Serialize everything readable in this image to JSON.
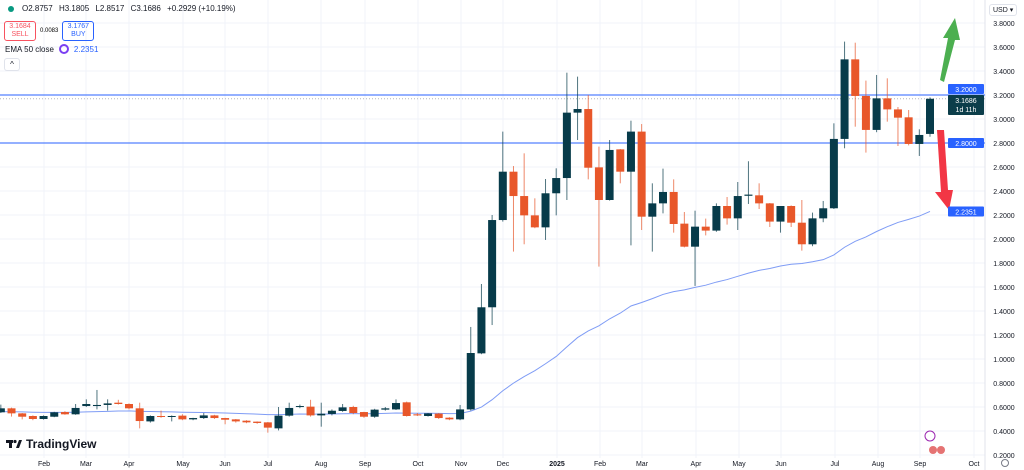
{
  "header": {
    "ohlc": {
      "open": "O2.8757",
      "high": "H3.1805",
      "low": "L2.8517",
      "close": "C3.1686",
      "change": "+0.2929 (+10.19%)"
    },
    "sell": {
      "price": "3.1684",
      "label": "SELL"
    },
    "spread": "0.0083",
    "buy": {
      "price": "3.1767",
      "label": "BUY"
    },
    "indicator": {
      "label": "EMA 50 close",
      "value": "2.2351"
    },
    "collapse_glyph": "^",
    "currency": "USD ▾"
  },
  "logo": {
    "text": "TradingView"
  },
  "colors": {
    "up": "#073b4a",
    "down": "#e8572a",
    "ema": "#7f9cf5",
    "level": "#2962ff",
    "arrow_up": "#4caf50",
    "arrow_down": "#f23645"
  },
  "chart_data": {
    "type": "candlestick",
    "interval": "1W",
    "ylim": [
      0.2,
      3.8
    ],
    "yticks": [
      "3.8000",
      "3.6000",
      "3.4000",
      "3.2000",
      "3.0000",
      "2.8000",
      "2.6000",
      "2.4000",
      "2.2000",
      "2.0000",
      "1.8000",
      "1.6000",
      "1.4000",
      "1.2000",
      "1.0000",
      "0.8000",
      "0.6000",
      "0.4000",
      "0.2000"
    ],
    "xticks": [
      "Feb",
      "Mar",
      "Apr",
      "May",
      "Jun",
      "Jul",
      "Aug",
      "Sep",
      "Oct",
      "Nov",
      "Dec",
      "2025",
      "Feb",
      "Mar",
      "Apr",
      "May",
      "Jun",
      "Jul",
      "Aug",
      "Sep",
      "Oct"
    ],
    "grid": true,
    "ohlc": [
      [
        0.556,
        0.62,
        0.55,
        0.589
      ],
      [
        0.589,
        0.595,
        0.52,
        0.547
      ],
      [
        0.547,
        0.55,
        0.497,
        0.519
      ],
      [
        0.525,
        0.53,
        0.49,
        0.5
      ],
      [
        0.5,
        0.53,
        0.495,
        0.525
      ],
      [
        0.519,
        0.56,
        0.515,
        0.556
      ],
      [
        0.558,
        0.565,
        0.535,
        0.539
      ],
      [
        0.539,
        0.625,
        0.535,
        0.592
      ],
      [
        0.608,
        0.664,
        0.6,
        0.625
      ],
      [
        0.608,
        0.742,
        0.58,
        0.617
      ],
      [
        0.617,
        0.664,
        0.57,
        0.63
      ],
      [
        0.636,
        0.66,
        0.62,
        0.625
      ],
      [
        0.625,
        0.63,
        0.58,
        0.589
      ],
      [
        0.589,
        0.636,
        0.422,
        0.483
      ],
      [
        0.48,
        0.53,
        0.47,
        0.525
      ],
      [
        0.525,
        0.57,
        0.51,
        0.517
      ],
      [
        0.517,
        0.53,
        0.48,
        0.525
      ],
      [
        0.528,
        0.54,
        0.49,
        0.497
      ],
      [
        0.497,
        0.51,
        0.49,
        0.508
      ],
      [
        0.508,
        0.55,
        0.5,
        0.53
      ],
      [
        0.53,
        0.535,
        0.5,
        0.508
      ],
      [
        0.508,
        0.51,
        0.456,
        0.494
      ],
      [
        0.497,
        0.5,
        0.47,
        0.48
      ],
      [
        0.486,
        0.49,
        0.465,
        0.472
      ],
      [
        0.478,
        0.48,
        0.46,
        0.467
      ],
      [
        0.472,
        0.475,
        0.386,
        0.428
      ],
      [
        0.422,
        0.6,
        0.405,
        0.528
      ],
      [
        0.528,
        0.636,
        0.52,
        0.592
      ],
      [
        0.603,
        0.62,
        0.59,
        0.608
      ],
      [
        0.603,
        0.66,
        0.52,
        0.53
      ],
      [
        0.53,
        0.636,
        0.436,
        0.544
      ],
      [
        0.542,
        0.58,
        0.53,
        0.569
      ],
      [
        0.567,
        0.625,
        0.56,
        0.597
      ],
      [
        0.6,
        0.61,
        0.54,
        0.55
      ],
      [
        0.558,
        0.56,
        0.51,
        0.519
      ],
      [
        0.519,
        0.585,
        0.51,
        0.578
      ],
      [
        0.578,
        0.6,
        0.57,
        0.589
      ],
      [
        0.58,
        0.664,
        0.575,
        0.633
      ],
      [
        0.639,
        0.645,
        0.52,
        0.525
      ],
      [
        0.539,
        0.55,
        0.525,
        0.53
      ],
      [
        0.525,
        0.55,
        0.52,
        0.547
      ],
      [
        0.545,
        0.55,
        0.5,
        0.508
      ],
      [
        0.511,
        0.515,
        0.49,
        0.497
      ],
      [
        0.497,
        0.617,
        0.49,
        0.58
      ],
      [
        0.58,
        1.267,
        0.57,
        1.05
      ],
      [
        1.047,
        1.625,
        1.04,
        1.431
      ],
      [
        1.431,
        2.2,
        1.283,
        2.158
      ],
      [
        2.158,
        2.895,
        2.145,
        2.561
      ],
      [
        2.561,
        2.608,
        1.895,
        2.358
      ],
      [
        2.358,
        2.714,
        1.956,
        2.197
      ],
      [
        2.197,
        2.339,
        2.09,
        2.097
      ],
      [
        2.097,
        2.5,
        1.992,
        2.381
      ],
      [
        2.381,
        2.589,
        2.197,
        2.508
      ],
      [
        2.508,
        3.386,
        2.325,
        3.053
      ],
      [
        3.053,
        3.353,
        2.825,
        3.083
      ],
      [
        3.083,
        3.2,
        2.497,
        2.594
      ],
      [
        2.597,
        2.77,
        1.77,
        2.325
      ],
      [
        2.325,
        2.825,
        2.32,
        2.742
      ],
      [
        2.747,
        2.75,
        2.464,
        2.561
      ],
      [
        2.561,
        2.986,
        1.947,
        2.895
      ],
      [
        2.895,
        2.958,
        2.075,
        2.186
      ],
      [
        2.186,
        2.464,
        1.895,
        2.297
      ],
      [
        2.297,
        2.586,
        2.214,
        2.392
      ],
      [
        2.392,
        2.497,
        2.053,
        2.125
      ],
      [
        2.128,
        2.225,
        1.93,
        1.936
      ],
      [
        1.936,
        2.236,
        1.609,
        2.103
      ],
      [
        2.103,
        2.17,
        2.03,
        2.07
      ],
      [
        2.07,
        2.297,
        2.06,
        2.275
      ],
      [
        2.275,
        2.35,
        2.12,
        2.172
      ],
      [
        2.172,
        2.475,
        2.075,
        2.358
      ],
      [
        2.36,
        2.648,
        2.292,
        2.37
      ],
      [
        2.364,
        2.464,
        2.25,
        2.297
      ],
      [
        2.297,
        2.3,
        2.1,
        2.145
      ],
      [
        2.145,
        2.275,
        2.053,
        2.275
      ],
      [
        2.275,
        2.28,
        2.1,
        2.136
      ],
      [
        2.136,
        2.325,
        1.903,
        1.956
      ],
      [
        1.956,
        2.22,
        1.94,
        2.172
      ],
      [
        2.172,
        2.317,
        2.14,
        2.256
      ],
      [
        2.256,
        2.964,
        2.25,
        2.834
      ],
      [
        2.834,
        3.645,
        2.756,
        3.497
      ],
      [
        3.497,
        3.636,
        2.936,
        3.192
      ],
      [
        3.192,
        3.32,
        2.72,
        2.909
      ],
      [
        2.909,
        3.367,
        2.89,
        3.172
      ],
      [
        3.172,
        3.339,
        2.978,
        3.08
      ],
      [
        3.08,
        3.1,
        2.775,
        3.011
      ],
      [
        3.014,
        3.075,
        2.78,
        2.792
      ],
      [
        2.792,
        2.914,
        2.692,
        2.867
      ],
      [
        2.8757,
        3.1805,
        2.8517,
        3.1686
      ]
    ],
    "ema_period": 50,
    "horizontal_levels": [
      {
        "value": 3.2,
        "label": "3.2000"
      },
      {
        "value": 2.8,
        "label": "2.8000"
      }
    ],
    "last_price": {
      "label": "3.1686",
      "countdown": "1d 11h"
    },
    "ema_label": "2.2351",
    "annotations": [
      {
        "type": "arrow",
        "direction": "up",
        "color": "green"
      },
      {
        "type": "arrow",
        "direction": "down",
        "color": "red"
      }
    ]
  }
}
